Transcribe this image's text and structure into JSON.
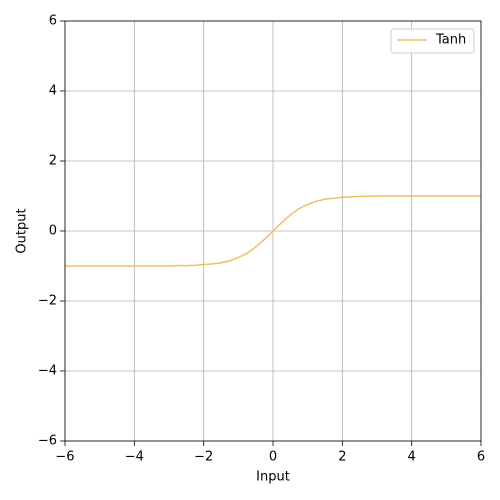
{
  "chart_data": {
    "type": "line",
    "x_label": "Input",
    "y_label": "Output",
    "x": [
      -6,
      -5,
      -4,
      -3,
      -2.75,
      -2.5,
      -2.25,
      -2,
      -1.75,
      -1.5,
      -1.25,
      -1,
      -0.75,
      -0.5,
      -0.25,
      0,
      0.25,
      0.5,
      0.75,
      1,
      1.25,
      1.5,
      1.75,
      2,
      2.25,
      2.5,
      2.75,
      3,
      4,
      5,
      6
    ],
    "series": [
      {
        "name": "Tanh",
        "color": "#efbf63",
        "values": [
          -1,
          -1,
          -1,
          -1,
          -0.99,
          -0.99,
          -0.98,
          -0.96,
          -0.94,
          -0.91,
          -0.85,
          -0.76,
          -0.64,
          -0.46,
          -0.24,
          0,
          0.24,
          0.46,
          0.64,
          0.76,
          0.85,
          0.91,
          0.94,
          0.96,
          0.98,
          0.99,
          0.99,
          1,
          1,
          1,
          1
        ]
      }
    ],
    "xlim": [
      -6,
      6
    ],
    "ylim": [
      -6,
      6
    ],
    "xticks": [
      {
        "value": -6,
        "label": "−6"
      },
      {
        "value": -4,
        "label": "−4"
      },
      {
        "value": -2,
        "label": "−2"
      },
      0,
      2,
      4,
      6
    ],
    "yticks": [
      {
        "value": -6,
        "label": "−6"
      },
      {
        "value": -4,
        "label": "−4"
      },
      {
        "value": -2,
        "label": "−2"
      },
      0,
      2,
      4,
      6
    ],
    "grid": true,
    "legend": "upper right"
  }
}
